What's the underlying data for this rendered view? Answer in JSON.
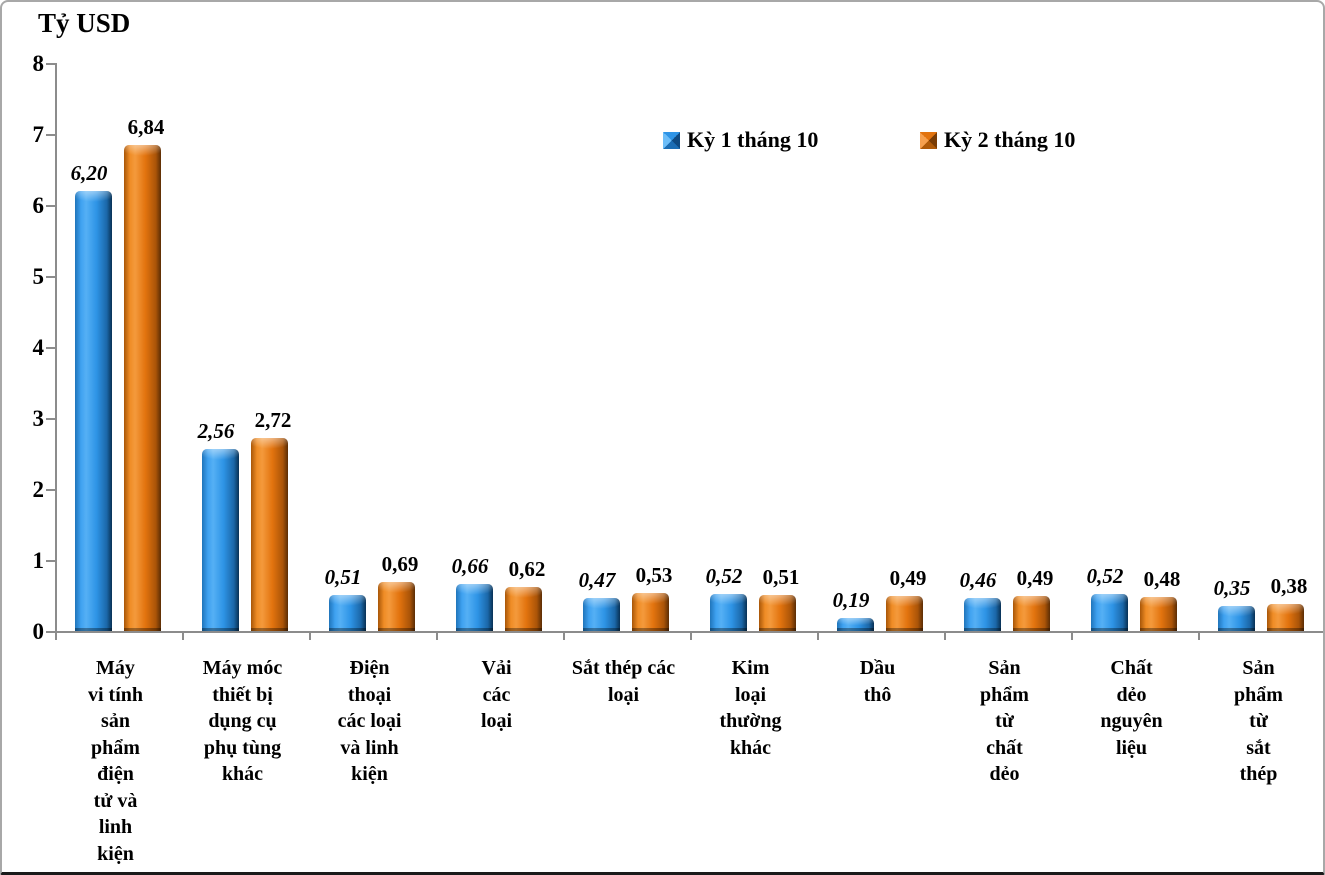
{
  "title": "Tỷ USD",
  "chart_data": {
    "type": "bar",
    "title": "Tỷ USD",
    "ylabel": "Tỷ USD",
    "xlabel": "",
    "ylim": [
      0,
      8
    ],
    "yticks": [
      0,
      1,
      2,
      3,
      4,
      5,
      6,
      7,
      8
    ],
    "grid": false,
    "legend_position": "top-center",
    "decimal_separator": ",",
    "categories": [
      "Máy vi tính sản phẩm điện tử và linh kiện",
      "Máy móc thiết bị dụng cụ phụ tùng khác",
      "Điện thoại các loại và linh kiện",
      "Vải các loại",
      "Sắt thép các loại",
      "Kim loại thường khác",
      "Dầu thô",
      "Sản phẩm từ chất dẻo",
      "Chất dẻo nguyên liệu",
      "Sản phẩm từ sắt thép"
    ],
    "category_display": [
      "Máy\nvi tính\nsản\nphẩm\nđiện\ntử và\nlinh\nkiện",
      "Máy móc\nthiết bị\ndụng cụ\nphụ tùng\nkhác",
      "Điện\nthoại\ncác loại\nvà linh\nkiện",
      "Vải\ncác\nloại",
      "Sắt thép các\nloại",
      "Kim\nloại\nthường\nkhác",
      "Dầu\nthô",
      "Sản\nphẩm\ntừ\nchất\ndẻo",
      "Chất\ndẻo\nnguyên\nliệu",
      "Sản\nphẩm\ntừ\nsắt\nthép"
    ],
    "series": [
      {
        "name": "Kỳ 1 tháng 10",
        "color": "#2E94E6",
        "values": [
          6.2,
          2.56,
          0.51,
          0.66,
          0.47,
          0.52,
          0.19,
          0.46,
          0.52,
          0.35
        ],
        "labels": [
          "6,20",
          "2,56",
          "0,51",
          "0,66",
          "0,47",
          "0,52",
          "0,19",
          "0,46",
          "0,52",
          "0,35"
        ]
      },
      {
        "name": "Kỳ 2 tháng 10",
        "color": "#E2730E",
        "values": [
          6.84,
          2.72,
          0.69,
          0.62,
          0.53,
          0.51,
          0.49,
          0.49,
          0.48,
          0.38
        ],
        "labels": [
          "6,84",
          "2,72",
          "0,69",
          "0,62",
          "0,53",
          "0,51",
          "0,49",
          "0,49",
          "0,48",
          "0,38"
        ]
      }
    ],
    "axis_color": "#8C8C8C",
    "text_color": "#000000"
  }
}
